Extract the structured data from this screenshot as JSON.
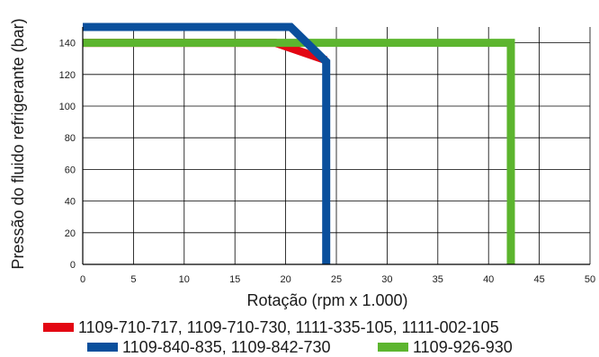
{
  "chart_data": {
    "type": "line",
    "xlabel": "Rotação (rpm x 1.000)",
    "ylabel": "Pressão do fluido refrigerante (bar)",
    "xlim": [
      0,
      50
    ],
    "ylim": [
      0,
      150
    ],
    "xticks": [
      0,
      5,
      10,
      15,
      20,
      25,
      30,
      35,
      40,
      45,
      50
    ],
    "yticks": [
      0,
      20,
      40,
      60,
      80,
      100,
      120,
      140
    ],
    "x_tick_labels": [
      "0",
      "5",
      "10",
      "15",
      "20",
      "25",
      "30",
      "35",
      "40",
      "45",
      "50"
    ],
    "y_tick_labels": [
      "0",
      "20",
      "40",
      "60",
      "80",
      "100",
      "120",
      "140"
    ],
    "grid": true,
    "legend_position": "bottom",
    "series": [
      {
        "name": "1109-710-717, 1109-710-730, 1111-335-105, 1111-002-105",
        "color": "#e30613",
        "x": [
          0,
          19,
          24
        ],
        "y": [
          140,
          140,
          129
        ]
      },
      {
        "name": "1109-926-930",
        "color": "#5cb52e",
        "x": [
          0,
          42.2,
          42.2
        ],
        "y": [
          140,
          140,
          0
        ]
      },
      {
        "name": "1109-840-835, 1109-842-730",
        "color": "#0a4f9c",
        "x": [
          0,
          20.5,
          24,
          24
        ],
        "y": [
          150,
          150,
          128,
          0
        ]
      }
    ],
    "legend": [
      {
        "label": "1109-710-717, 1109-710-730, 1111-335-105, 1111-002-105",
        "color": "#e30613"
      },
      {
        "label": "1109-840-835, 1109-842-730",
        "color": "#0a4f9c"
      },
      {
        "label": "1109-926-930",
        "color": "#5cb52e"
      }
    ]
  }
}
